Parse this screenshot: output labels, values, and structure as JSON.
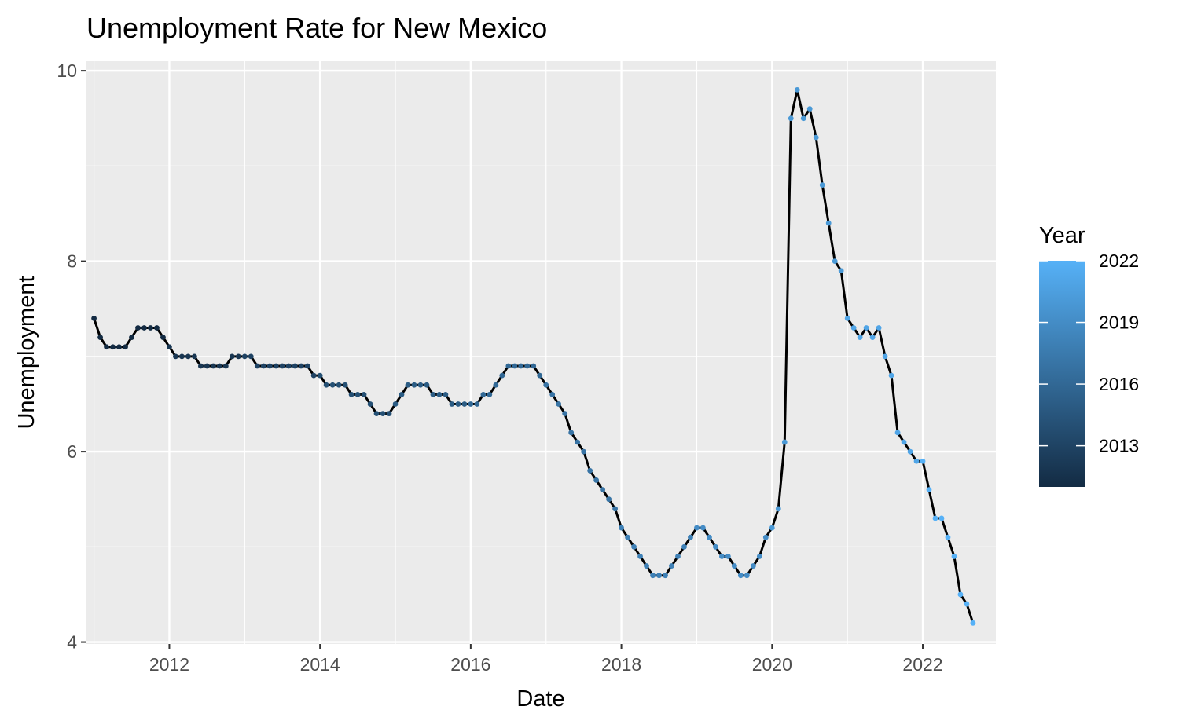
{
  "chart_data": {
    "type": "line",
    "title": "Unemployment Rate for New Mexico",
    "xlabel": "Date",
    "ylabel": "Unemployment",
    "xlim": [
      2010.9,
      2022.97
    ],
    "ylim": [
      3.98,
      10.1
    ],
    "x_ticks": [
      2012,
      2014,
      2016,
      2018,
      2020,
      2022
    ],
    "x_tick_labels": [
      "2012",
      "2014",
      "2016",
      "2018",
      "2020",
      "2022"
    ],
    "y_ticks": [
      4,
      6,
      8,
      10
    ],
    "y_tick_labels": [
      "4",
      "6",
      "8",
      "10"
    ],
    "grid": true,
    "line_color": "#000000",
    "legend": {
      "title": "Year",
      "placement": "right",
      "labels": [
        "2022",
        "2019",
        "2016",
        "2013"
      ],
      "label_values": [
        2022,
        2019,
        2016,
        2013
      ],
      "range": [
        2011,
        2022
      ],
      "low_color": "#132B43",
      "high_color": "#56B1F7"
    },
    "series": [
      {
        "start_year": 2011,
        "values": [
          7.4,
          7.2,
          7.1,
          7.1,
          7.1,
          7.1,
          7.2,
          7.3,
          7.3,
          7.3,
          7.3,
          7.2,
          7.1,
          7.0,
          7.0,
          7.0,
          7.0,
          6.9,
          6.9,
          6.9,
          6.9,
          6.9,
          7.0,
          7.0,
          7.0,
          7.0,
          6.9,
          6.9,
          6.9,
          6.9,
          6.9,
          6.9,
          6.9,
          6.9,
          6.9,
          6.8,
          6.8,
          6.7,
          6.7,
          6.7,
          6.7,
          6.6,
          6.6,
          6.6,
          6.5,
          6.4,
          6.4,
          6.4,
          6.5,
          6.6,
          6.7,
          6.7,
          6.7,
          6.7,
          6.6,
          6.6,
          6.6,
          6.5,
          6.5,
          6.5,
          6.5,
          6.5,
          6.6,
          6.6,
          6.7,
          6.8,
          6.9,
          6.9,
          6.9,
          6.9,
          6.9,
          6.8,
          6.7,
          6.6,
          6.5,
          6.4,
          6.2,
          6.1,
          6.0,
          5.8,
          5.7,
          5.6,
          5.5,
          5.4,
          5.2,
          5.1,
          5.0,
          4.9,
          4.8,
          4.7,
          4.7,
          4.7,
          4.8,
          4.9,
          5.0,
          5.1,
          5.2,
          5.2,
          5.1,
          5.0,
          4.9,
          4.9,
          4.8,
          4.7,
          4.7,
          4.8,
          4.9,
          5.1,
          5.2,
          5.4,
          6.1,
          9.5,
          9.8,
          9.5,
          9.6,
          9.3,
          8.8,
          8.4,
          8.0,
          7.9,
          7.4,
          7.3,
          7.2,
          7.3,
          7.2,
          7.3,
          7.0,
          6.8,
          6.2,
          6.1,
          6.0,
          5.9,
          5.9,
          5.6,
          5.3,
          5.3,
          5.1,
          4.9,
          4.5,
          4.4,
          4.2
        ]
      }
    ]
  }
}
